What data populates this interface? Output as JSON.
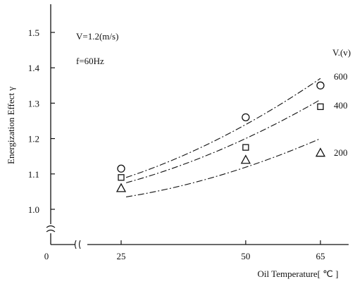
{
  "chart_data": {
    "type": "scatter",
    "xlabel": "Oil Temperature[ ℃ ]",
    "ylabel": "Energization Effect γ",
    "xlim": [
      0,
      70
    ],
    "ylim": [
      0.9,
      1.55
    ],
    "x_axis_break": true,
    "y_axis_break": true,
    "grid": false,
    "x_ticks": [
      {
        "value": 0,
        "label": "0"
      },
      {
        "value": 25,
        "label": "25"
      },
      {
        "value": 50,
        "label": "50"
      },
      {
        "value": 65,
        "label": "65"
      }
    ],
    "y_ticks": [
      {
        "value": 1.0,
        "label": "1.0"
      },
      {
        "value": 1.1,
        "label": "1.1"
      },
      {
        "value": 1.2,
        "label": "1.2"
      },
      {
        "value": 1.3,
        "label": "1.3"
      },
      {
        "value": 1.4,
        "label": "1.4"
      },
      {
        "value": 1.5,
        "label": "1.5"
      }
    ],
    "annotations": [
      "V=1.2(m/s)",
      "f=60Hz"
    ],
    "legend_title": "V.(v)",
    "series": [
      {
        "name": "600",
        "marker": "circle",
        "points": [
          {
            "x": 25,
            "y": 1.115
          },
          {
            "x": 50,
            "y": 1.26
          },
          {
            "x": 65,
            "y": 1.35
          }
        ],
        "fit_curve": [
          {
            "x": 26,
            "y": 1.09
          },
          {
            "x": 45,
            "y": 1.19
          },
          {
            "x": 65,
            "y": 1.37
          }
        ]
      },
      {
        "name": "400",
        "marker": "square",
        "points": [
          {
            "x": 25,
            "y": 1.09
          },
          {
            "x": 50,
            "y": 1.175
          },
          {
            "x": 65,
            "y": 1.29
          }
        ],
        "fit_curve": [
          {
            "x": 26,
            "y": 1.075
          },
          {
            "x": 45,
            "y": 1.16
          },
          {
            "x": 65,
            "y": 1.31
          }
        ]
      },
      {
        "name": "200",
        "marker": "triangle",
        "points": [
          {
            "x": 25,
            "y": 1.06
          },
          {
            "x": 50,
            "y": 1.14
          },
          {
            "x": 65,
            "y": 1.16
          }
        ],
        "fit_curve": [
          {
            "x": 26,
            "y": 1.035
          },
          {
            "x": 45,
            "y": 1.09
          },
          {
            "x": 65,
            "y": 1.2
          }
        ]
      }
    ]
  }
}
